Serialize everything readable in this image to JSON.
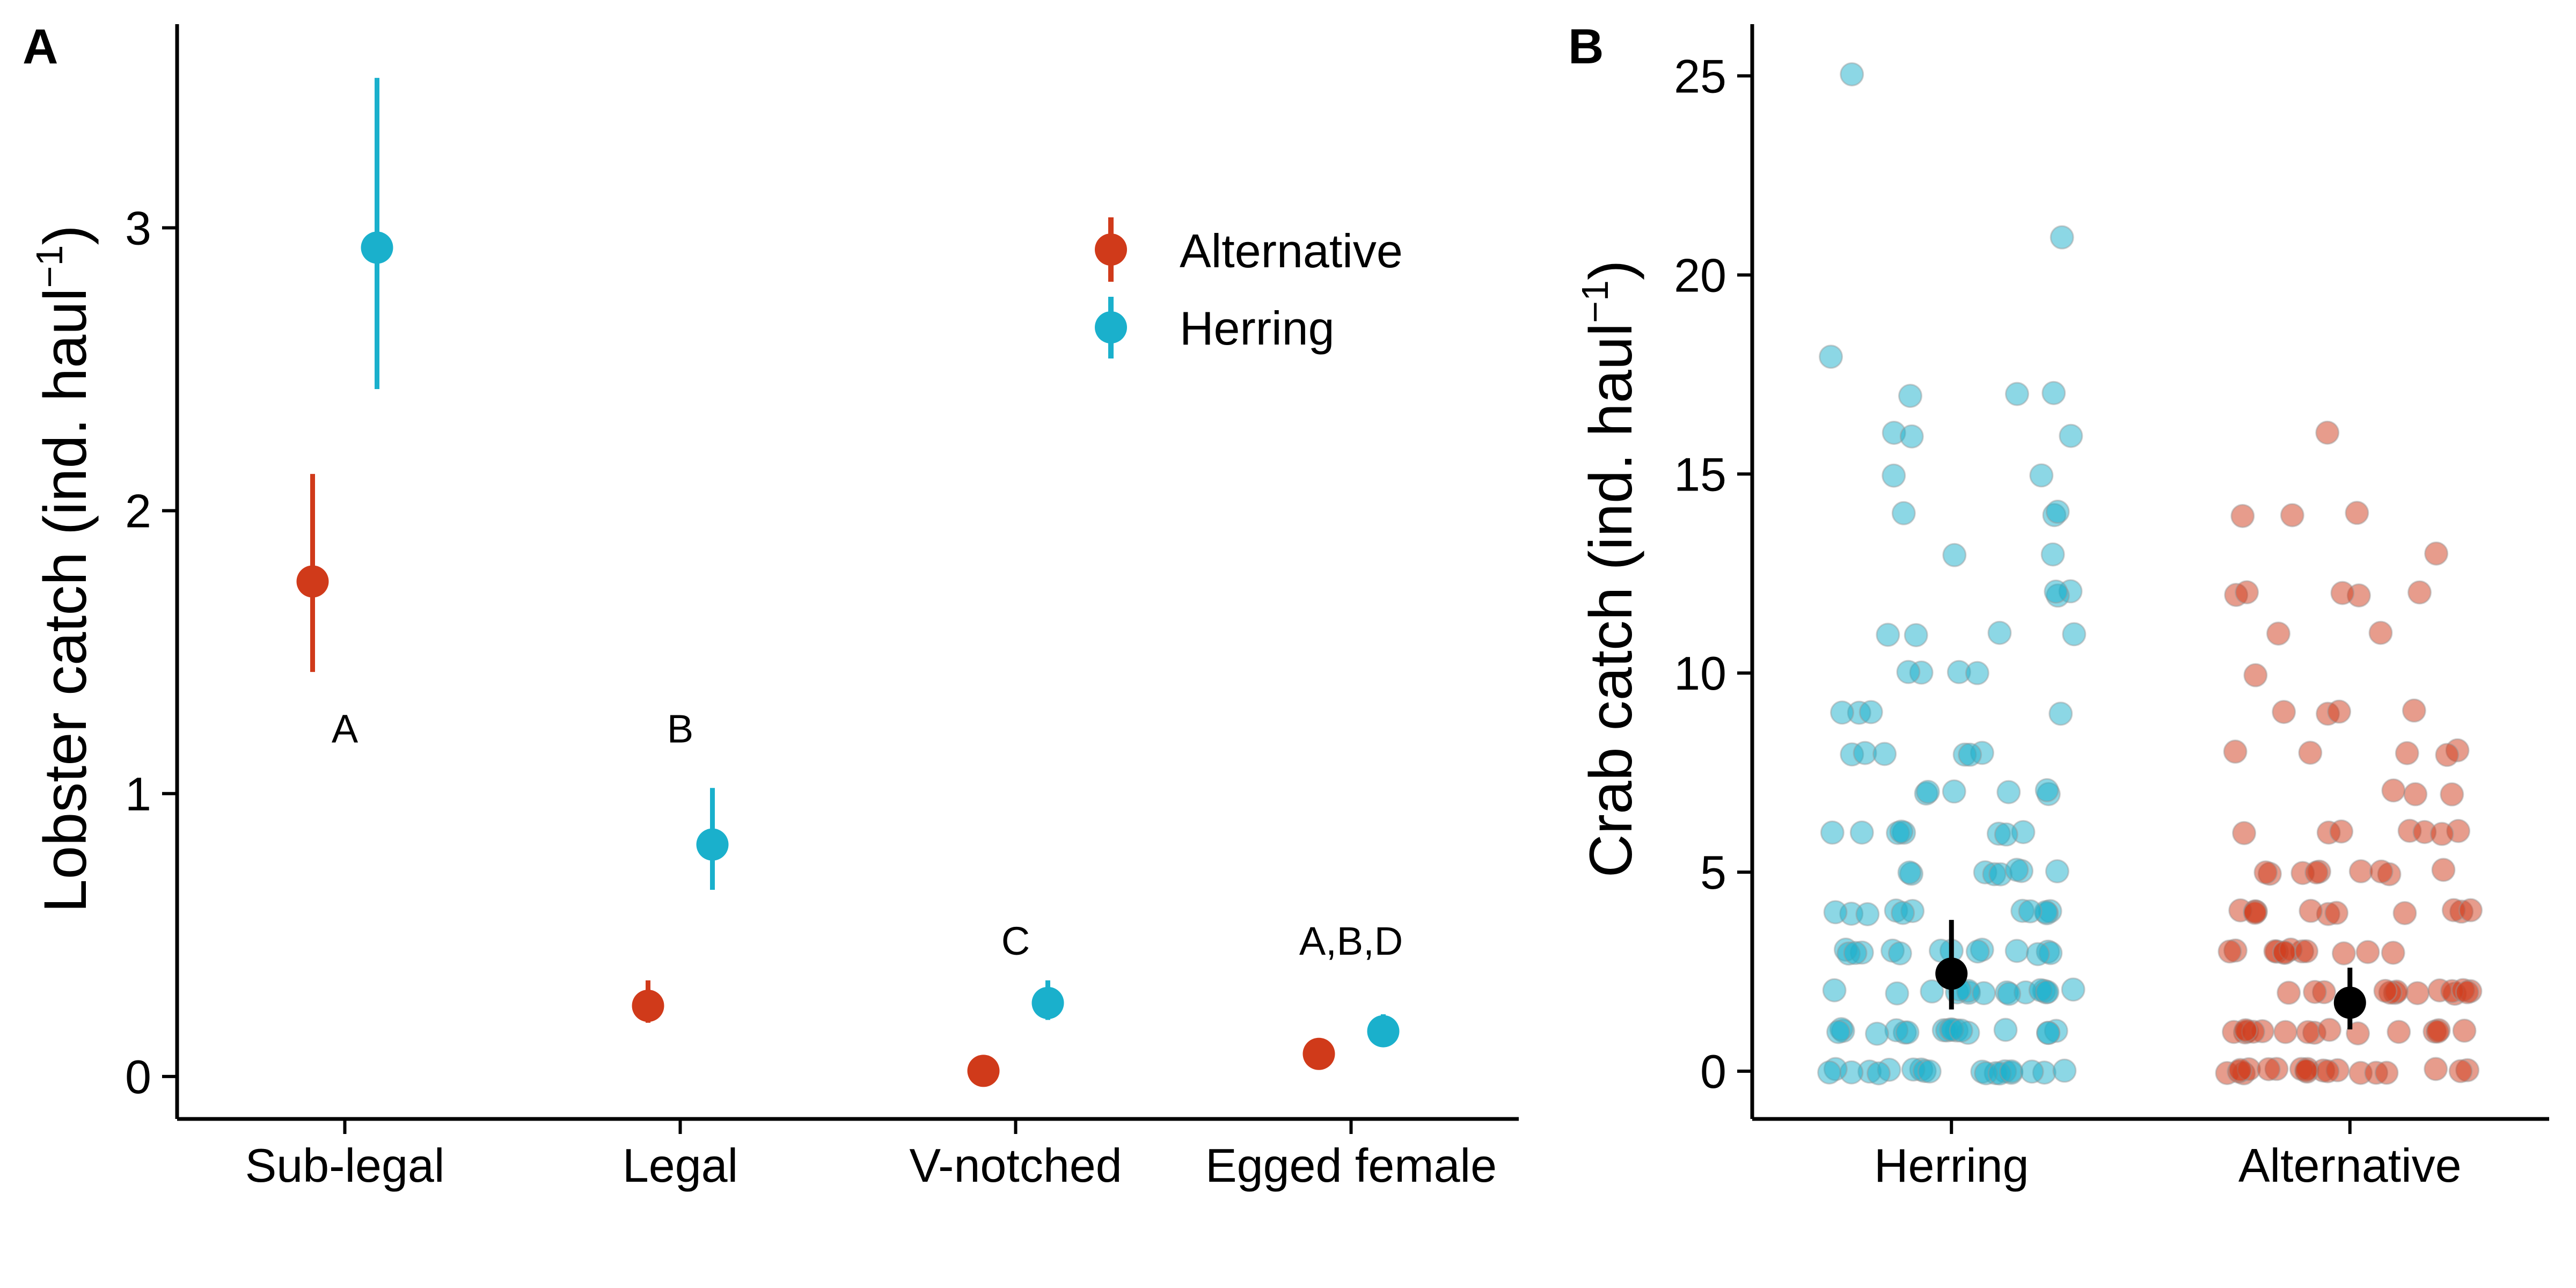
{
  "colors": {
    "alternative": "#d03a1a",
    "herring": "#1ab0cc",
    "mean": "#000000"
  },
  "chart_data": [
    {
      "panel_label": "A",
      "type": "scatter",
      "categories": [
        "Sub-legal",
        "Legal",
        "V-notched",
        "Egged female"
      ],
      "ylabel_main": "Lobster catch (ind. haul",
      "ylabel_sup": "−1",
      "ylabel_close": ")",
      "xlabel": "",
      "ylim": [
        -0.15,
        3.72
      ],
      "yticks": [
        0,
        1,
        2,
        3
      ],
      "grid": false,
      "legend_position": "top-right",
      "series": [
        {
          "name": "Alternative",
          "color": "#d03a1a",
          "values": [
            1.75,
            0.25,
            0.02,
            0.08
          ],
          "lower": [
            1.43,
            0.19,
            0.02,
            0.06
          ],
          "upper": [
            2.13,
            0.34,
            0.03,
            0.1
          ]
        },
        {
          "name": "Herring",
          "color": "#1ab0cc",
          "values": [
            2.93,
            0.82,
            0.26,
            0.16
          ],
          "lower": [
            2.43,
            0.66,
            0.2,
            0.12
          ],
          "upper": [
            3.53,
            1.02,
            0.34,
            0.22
          ]
        }
      ],
      "annotations": [
        {
          "category": "Sub-legal",
          "text": "A",
          "y": 1.23
        },
        {
          "category": "Legal",
          "text": "B",
          "y": 1.23
        },
        {
          "category": "V-notched",
          "text": "C",
          "y": 0.48
        },
        {
          "category": "Egged female",
          "text": "A,B,D",
          "y": 0.48
        }
      ]
    },
    {
      "panel_label": "B",
      "type": "scatter",
      "categories": [
        "Herring",
        "Alternative"
      ],
      "ylabel_main": "Crab catch (ind. haul",
      "ylabel_sup": "−1",
      "ylabel_close": ")",
      "xlabel": "",
      "ylim": [
        -1.2,
        26.3
      ],
      "yticks": [
        0,
        5,
        10,
        15,
        20,
        25
      ],
      "grid": false,
      "means": [
        {
          "category": "Herring",
          "value": 2.45,
          "lower": 1.55,
          "upper": 3.8
        },
        {
          "category": "Alternative",
          "value": 1.72,
          "lower": 1.05,
          "upper": 2.6
        }
      ],
      "raw_points": [
        {
          "category": "Herring",
          "color": "#1ab0cc",
          "values": [
            25,
            21,
            18,
            17,
            17,
            17,
            16,
            16,
            16,
            15,
            15,
            14,
            14,
            14,
            13,
            13,
            12,
            12,
            12,
            11,
            11,
            11,
            11,
            10,
            10,
            10,
            10,
            9,
            9,
            9,
            9,
            8,
            8,
            8,
            8,
            8,
            8,
            7,
            7,
            7,
            7,
            7,
            7,
            6,
            6,
            6,
            6,
            6,
            6,
            6,
            6,
            5,
            5,
            5,
            5,
            5,
            5,
            5,
            5,
            4,
            4,
            4,
            4,
            4,
            4,
            4,
            4,
            4,
            4,
            4,
            3,
            3,
            3,
            3,
            3,
            3,
            3,
            3,
            3,
            3,
            3,
            3,
            3,
            3,
            2,
            2,
            2,
            2,
            2,
            2,
            2,
            2,
            2,
            2,
            2,
            2,
            2,
            2,
            2,
            2,
            1,
            1,
            1,
            1,
            1,
            1,
            1,
            1,
            1,
            1,
            1,
            1,
            1,
            1,
            1,
            1,
            1,
            1,
            0,
            0,
            0,
            0,
            0,
            0,
            0,
            0,
            0,
            0,
            0,
            0,
            0,
            0,
            0,
            0,
            0,
            0,
            0,
            0
          ]
        },
        {
          "category": "Alternative",
          "color": "#d03a1a",
          "values": [
            16,
            14,
            14,
            14,
            13,
            12,
            12,
            12,
            12,
            12,
            11,
            11,
            10,
            9,
            9,
            9,
            9,
            8,
            8,
            8,
            8,
            8,
            7,
            7,
            7,
            6,
            6,
            6,
            6,
            6,
            6,
            6,
            5,
            5,
            5,
            5,
            5,
            5,
            5,
            5,
            5,
            4,
            4,
            4,
            4,
            4,
            4,
            4,
            4,
            4,
            4,
            4,
            3,
            3,
            3,
            3,
            3,
            3,
            3,
            3,
            3,
            3,
            3,
            3,
            2,
            2,
            2,
            2,
            2,
            2,
            2,
            2,
            2,
            2,
            2,
            2,
            2,
            2,
            1,
            1,
            1,
            1,
            1,
            1,
            1,
            1,
            1,
            1,
            1,
            1,
            1,
            1,
            1,
            1,
            0,
            0,
            0,
            0,
            0,
            0,
            0,
            0,
            0,
            0,
            0,
            0,
            0,
            0,
            0,
            0,
            0,
            0,
            0,
            0
          ]
        }
      ]
    }
  ]
}
